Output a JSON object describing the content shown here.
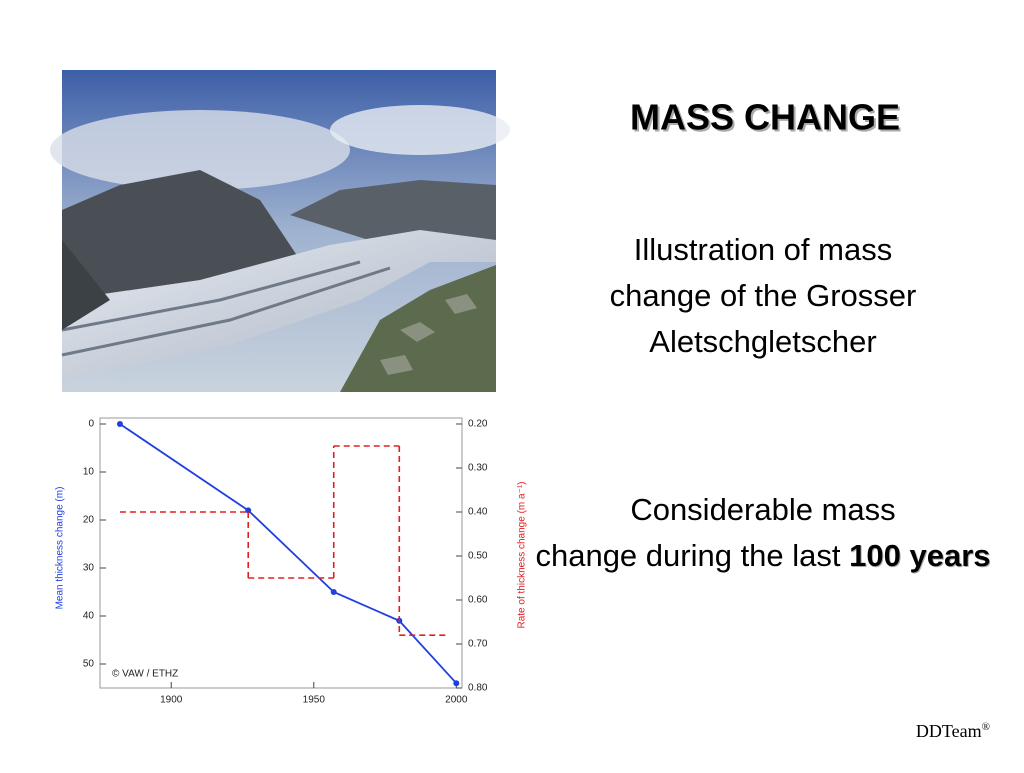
{
  "slide": {
    "title": "MASS CHANGE",
    "paragraphs": [
      "Illustration of mass change of the Grosser Aletschgletscher",
      {
        "text": "Considerable mass change during the last",
        "emphasis": "100 years"
      }
    ],
    "footer": {
      "text": "DDTeam",
      "mark": "®"
    }
  },
  "chart_data": {
    "type": "line",
    "annotation": "© VAW / ETHZ",
    "y_label": "Mean thickness change (m)",
    "y2_label": "Rate of thickness change (m a⁻¹)",
    "xlim": [
      1875,
      2002
    ],
    "xticks": [
      1900,
      1950,
      2000
    ],
    "ylim": [
      0,
      55
    ],
    "yticks": [
      0,
      10,
      20,
      30,
      40,
      50
    ],
    "y2lim": [
      0.2,
      0.8
    ],
    "y2ticks": [
      {
        "value": 0.2,
        "label": "0.20"
      },
      {
        "value": 0.3,
        "label": "0.30"
      },
      {
        "value": 0.4,
        "label": "0.40"
      },
      {
        "value": 0.5,
        "label": "0.50"
      },
      {
        "value": 0.6,
        "label": "0.60"
      },
      {
        "value": 0.7,
        "label": "0.70"
      },
      {
        "value": 0.8,
        "label": "0.80"
      }
    ],
    "series": [
      {
        "color": "#1f3fe0",
        "x": [
          1882,
          1927,
          1957,
          1980,
          2000
        ],
        "values": [
          0,
          18,
          35,
          41,
          54
        ]
      },
      {
        "color": "#e02020",
        "axis": "y2",
        "bins": [
          1882,
          1927,
          1957,
          1980,
          1997
        ],
        "values": [
          0.4,
          0.55,
          0.25,
          0.68
        ]
      }
    ]
  }
}
